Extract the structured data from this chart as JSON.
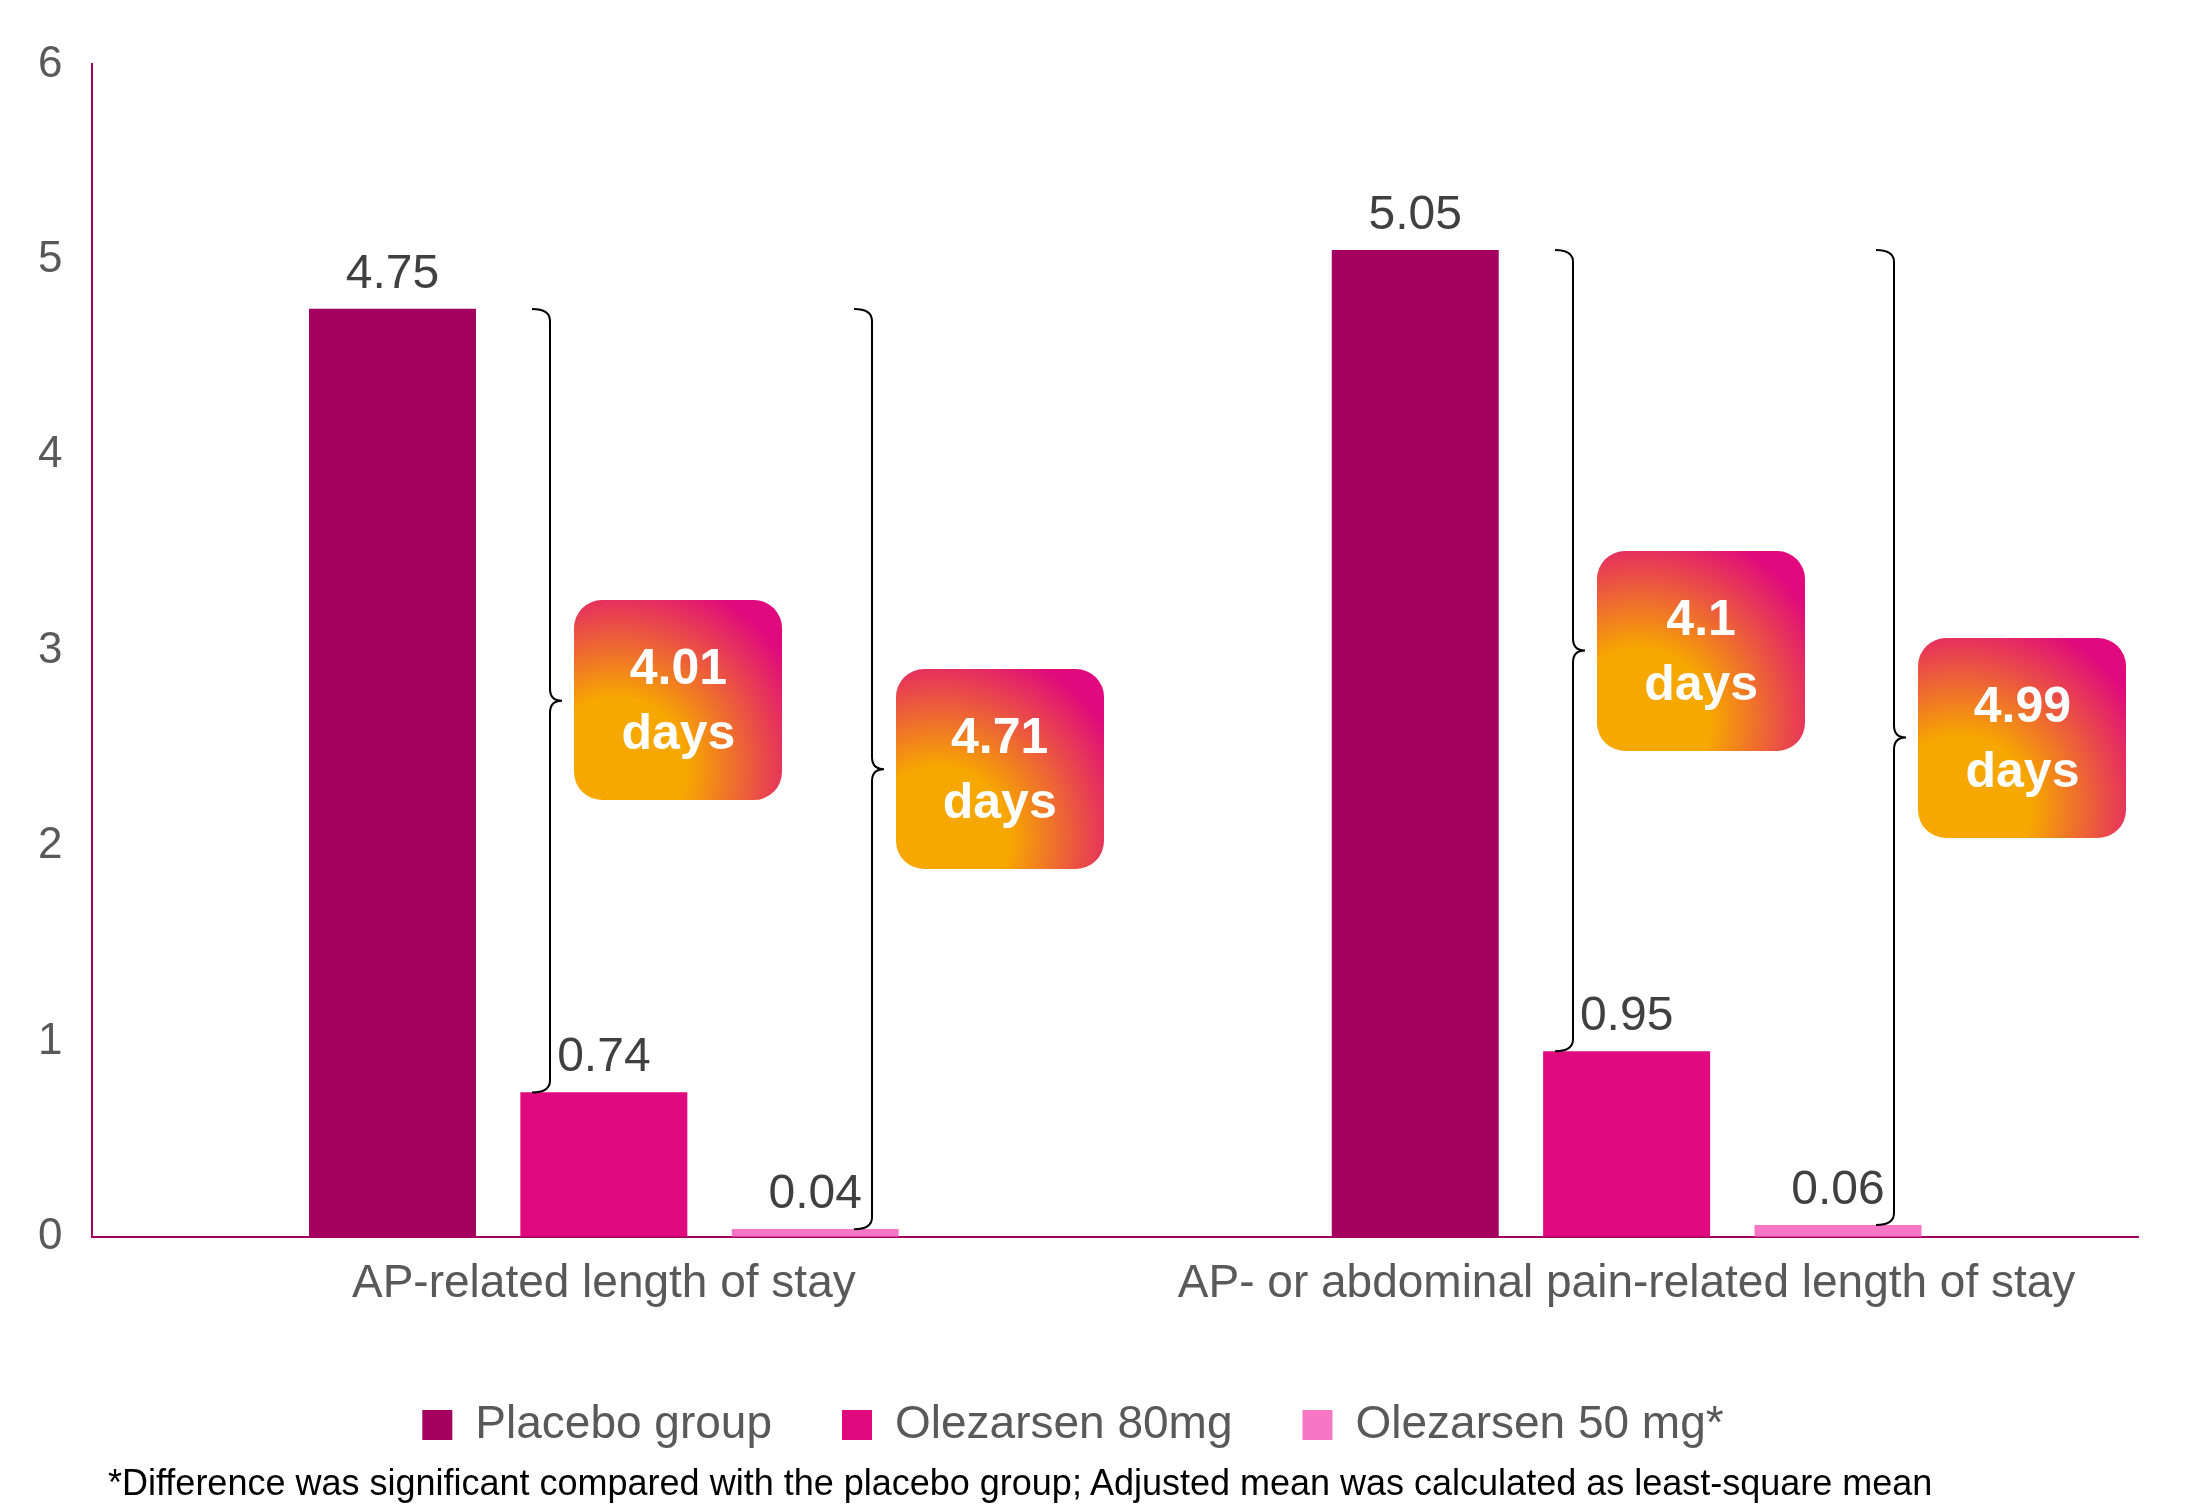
{
  "chart_data": {
    "type": "bar",
    "categories": [
      "AP-related length of stay",
      "AP- or abdominal pain-related length of stay"
    ],
    "series": [
      {
        "name": "Placebo group",
        "color": "#a3005f",
        "values": [
          4.75,
          5.05
        ]
      },
      {
        "name": "Olezarsen 80mg",
        "color": "#e0097d",
        "values": [
          0.74,
          0.95
        ]
      },
      {
        "name": "Olezarsen 50 mg*",
        "color": "#f776c6",
        "values": [
          0.04,
          0.06
        ]
      }
    ],
    "ylim": [
      0,
      6
    ],
    "yticks": [
      0,
      1,
      2,
      3,
      4,
      5,
      6
    ],
    "grid": false,
    "legend": "bottom",
    "data_labels": true,
    "annotations": [
      "4.01 days",
      "4.71 days",
      "4.1 days",
      "4.99 days",
      "*Difference was significant compared with the placebo group; Adjusted mean was calculated as least-square mean"
    ]
  }
}
